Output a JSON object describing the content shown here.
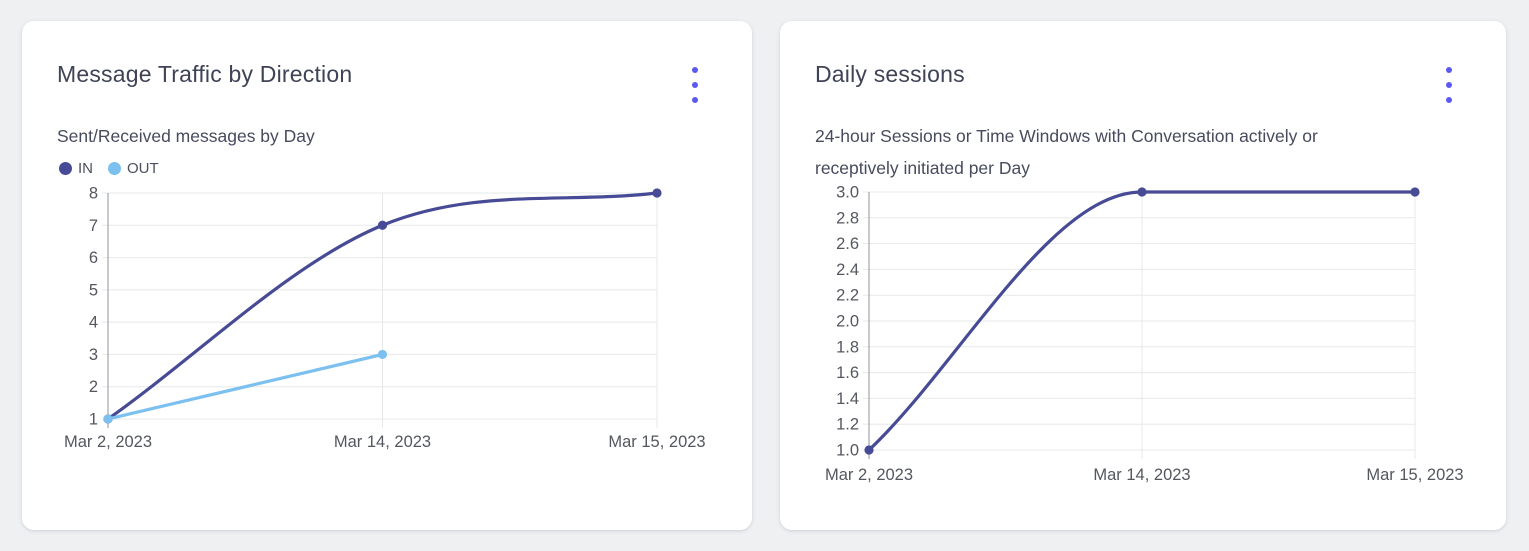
{
  "page": {
    "background_color": "#eef0f2",
    "card_background": "#ffffff",
    "accent_color": "#5a5af2",
    "title_color": "#3f4356",
    "subtitle_color": "#474b5d",
    "tick_label_color": "#54575f",
    "gridline_color": "#e7e8ea",
    "axis_line_color": "#a3a5aa"
  },
  "cards": [
    {
      "title": "Message Traffic by Direction",
      "subtitle": "Sent/Received messages by Day",
      "menu_icon": "kebab-menu-icon",
      "legend": [
        {
          "label": "IN",
          "color": "#474b96"
        },
        {
          "label": "OUT",
          "color": "#7cc0f0"
        }
      ]
    },
    {
      "title": "Daily sessions",
      "subtitle_lines": [
        "24-hour Sessions or Time Windows with Conversation actively or",
        "receptively initiated per Day"
      ],
      "menu_icon": "kebab-menu-icon"
    }
  ],
  "chart_data": [
    {
      "type": "line",
      "title": "Message Traffic by Direction",
      "subtitle": "Sent/Received messages by Day",
      "x": [
        "Mar 2, 2023",
        "Mar 14, 2023",
        "Mar 15, 2023"
      ],
      "series": [
        {
          "name": "IN",
          "color": "#474b96",
          "values": [
            1,
            7,
            8
          ]
        },
        {
          "name": "OUT",
          "color": "#7cc0f0",
          "values": [
            1,
            3,
            null
          ]
        }
      ],
      "ylim": [
        1,
        8
      ],
      "yticks": [
        1,
        2,
        3,
        4,
        5,
        6,
        7,
        8
      ],
      "ytick_format": "integer",
      "grid": true,
      "legend_position": "top-left",
      "curve": "monotone"
    },
    {
      "type": "line",
      "title": "Daily sessions",
      "subtitle": "24-hour Sessions or Time Windows with Conversation actively or receptively initiated per Day",
      "x": [
        "Mar 2, 2023",
        "Mar 14, 2023",
        "Mar 15, 2023"
      ],
      "series": [
        {
          "name": "Daily sessions",
          "color": "#474b96",
          "values": [
            1,
            3,
            3
          ]
        }
      ],
      "ylim": [
        1.0,
        3.0
      ],
      "yticks": [
        1.0,
        1.2,
        1.4,
        1.6,
        1.8,
        2.0,
        2.2,
        2.4,
        2.6,
        2.8,
        3.0
      ],
      "ytick_format": "one-decimal",
      "grid": true,
      "legend_position": "none",
      "curve": "monotone"
    }
  ]
}
